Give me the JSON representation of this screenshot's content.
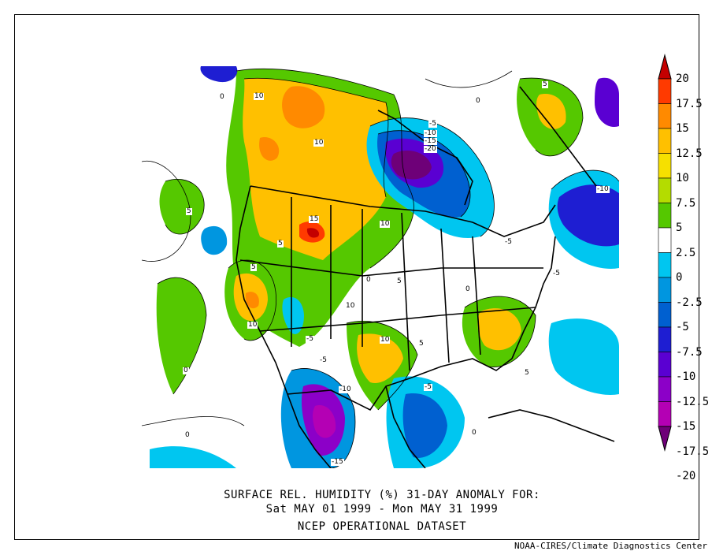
{
  "title": {
    "line1": "SURFACE REL. HUMIDITY (%)   31-DAY ANOMALY FOR:",
    "line2": "Sat MAY 01 1999 - Mon MAY 31 1999",
    "line3": "NCEP OPERATIONAL DATASET"
  },
  "credit": "NOAA-CIRES/Climate Diagnostics Center",
  "colorbar": {
    "labels": [
      "20",
      "17.5",
      "15",
      "12.5",
      "10",
      "7.5",
      "5",
      "2.5",
      "0",
      "-2.5",
      "-5",
      "-7.5",
      "-10",
      "-12.5",
      "-15",
      "-17.5",
      "-20"
    ],
    "colors": [
      "#c40000",
      "#ff3a00",
      "#ff8a00",
      "#ffc000",
      "#f6e000",
      "#b4dc00",
      "#55c800",
      "#ffffff",
      "#00c6f0",
      "#0096e0",
      "#0060d0",
      "#1e1ed2",
      "#5a00d2",
      "#8c00c8",
      "#b400b4",
      "#6e0078"
    ]
  },
  "contour_labels": [
    "10",
    "10",
    "5",
    "15",
    "10",
    "5",
    "0",
    "5",
    "5",
    "10",
    "10",
    "10",
    "5",
    "-5",
    "-5",
    "-10",
    "-15",
    "5",
    "-5",
    "-10",
    "-15",
    "-20",
    "0",
    "0",
    "5",
    "-5",
    "-10",
    "-5",
    "0",
    "-5",
    "0",
    "0",
    "0"
  ]
}
